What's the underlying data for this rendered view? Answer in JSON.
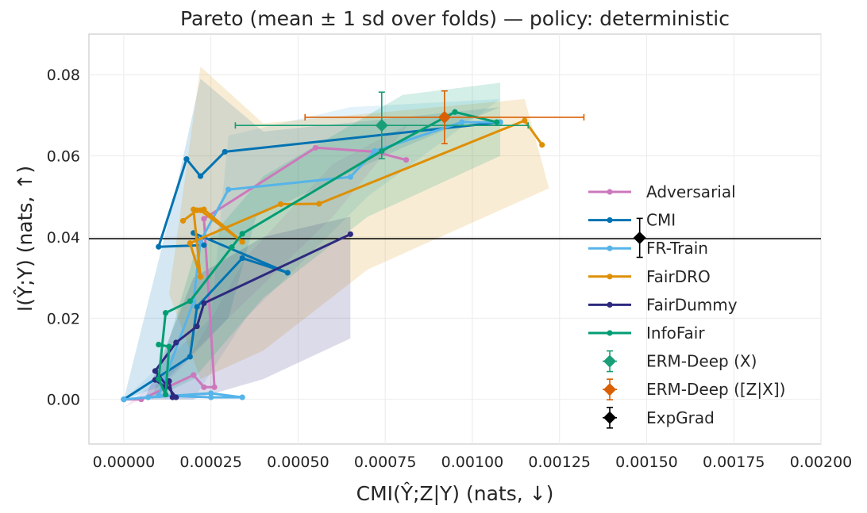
{
  "chart_data": {
    "type": "line",
    "title": "Pareto (mean ± 1 sd over folds) — policy: deterministic",
    "xlabel": "CMI(Ŷ;Z|Y) (nats, ↓)",
    "ylabel": "I(Ŷ;Y) (nats, ↑)",
    "xlim": [
      -0.0001,
      0.002
    ],
    "ylim": [
      -0.011,
      0.09
    ],
    "grid": true,
    "x_ticks": [
      0.0,
      0.00025,
      0.0005,
      0.00075,
      0.001,
      0.00125,
      0.0015,
      0.00175,
      0.002
    ],
    "x_tick_labels": [
      "0.00000",
      "0.00025",
      "0.00050",
      "0.00075",
      "0.00100",
      "0.00125",
      "0.00150",
      "0.00175",
      "0.00200"
    ],
    "y_ticks": [
      0.0,
      0.02,
      0.04,
      0.06,
      0.08
    ],
    "y_tick_labels": [
      "0.00",
      "0.02",
      "0.04",
      "0.06",
      "0.08"
    ],
    "reference_line": {
      "y": 0.0396,
      "color": "#000000"
    },
    "legend_position": "center-right",
    "series": [
      {
        "name": "Adversarial",
        "color": "#cc78bc",
        "points": [
          [
            0.0,
            0.0
          ],
          [
            5e-05,
            0.0
          ],
          [
            0.0002,
            0.006
          ],
          [
            0.00023,
            0.003
          ],
          [
            0.00026,
            0.003
          ],
          [
            0.00023,
            0.0445
          ],
          [
            0.00055,
            0.062
          ],
          [
            0.00072,
            0.061
          ],
          [
            0.00081,
            0.059
          ]
        ],
        "band": [
          [
            0.0,
            -0.002
          ],
          [
            0.0002,
            0.012
          ],
          [
            0.00035,
            0.035
          ],
          [
            0.0006,
            0.058
          ],
          [
            0.00082,
            0.068
          ],
          [
            0.0006,
            0.045
          ],
          [
            0.0003,
            0.02
          ],
          [
            0.0001,
            0.002
          ]
        ]
      },
      {
        "name": "CMI",
        "color": "#0173b2",
        "points": [
          [
            0.0,
            0.0
          ],
          [
            0.00019,
            0.0105
          ],
          [
            0.00021,
            0.0228
          ],
          [
            0.00034,
            0.0348
          ],
          [
            0.00047,
            0.0312
          ],
          [
            0.0002,
            0.041
          ],
          [
            0.00023,
            0.038
          ],
          [
            0.0001,
            0.0376
          ],
          [
            0.00018,
            0.0592
          ],
          [
            0.00022,
            0.055
          ],
          [
            0.00029,
            0.061
          ],
          [
            0.00108,
            0.0683
          ]
        ],
        "band": [
          [
            0.0,
            0.0
          ],
          [
            0.00014,
            0.048
          ],
          [
            0.00022,
            0.079
          ],
          [
            0.0004,
            0.066
          ],
          [
            0.00108,
            0.072
          ],
          [
            0.0008,
            0.062
          ],
          [
            0.00038,
            0.045
          ],
          [
            0.0003,
            0.02
          ],
          [
            0.0001,
            0.003
          ]
        ]
      },
      {
        "name": "FR-Train",
        "color": "#56b4e9",
        "points": [
          [
            0.0,
            0.0
          ],
          [
            7e-05,
            0.0005
          ],
          [
            0.00025,
            0.0015
          ],
          [
            0.00034,
            0.0005
          ],
          [
            0.00025,
            0.0005
          ],
          [
            0.0001,
            0.001
          ],
          [
            0.0002,
            0.024
          ],
          [
            0.00022,
            0.039
          ],
          [
            0.0003,
            0.0517
          ],
          [
            0.00065,
            0.0548
          ],
          [
            0.00072,
            0.0612
          ],
          [
            0.00097,
            0.0683
          ],
          [
            0.00108,
            0.0683
          ]
        ],
        "band": [
          [
            0.0,
            0.0
          ],
          [
            0.00025,
            0.02
          ],
          [
            0.0003,
            0.065
          ],
          [
            0.00065,
            0.072
          ],
          [
            0.00108,
            0.074
          ],
          [
            0.0007,
            0.05
          ],
          [
            0.00035,
            0.02
          ],
          [
            0.0002,
            0.0
          ]
        ]
      },
      {
        "name": "FairDRO",
        "color": "#de8f05",
        "points": [
          [
            0.00017,
            0.044
          ],
          [
            0.00021,
            0.0466
          ],
          [
            0.00023,
            0.0468
          ],
          [
            0.00034,
            0.0388
          ],
          [
            0.00022,
            0.0466
          ],
          [
            0.0002,
            0.0468
          ],
          [
            0.00022,
            0.0302
          ],
          [
            0.00019,
            0.0385
          ],
          [
            0.00045,
            0.0481
          ],
          [
            0.00056,
            0.0482
          ],
          [
            0.00115,
            0.0687
          ],
          [
            0.0012,
            0.0627
          ]
        ],
        "band": [
          [
            0.00013,
            0.026
          ],
          [
            0.00022,
            0.082
          ],
          [
            0.0004,
            0.068
          ],
          [
            0.00115,
            0.074
          ],
          [
            0.00122,
            0.052
          ],
          [
            0.0007,
            0.032
          ],
          [
            0.0004,
            0.012
          ],
          [
            0.00022,
            0.005
          ]
        ]
      },
      {
        "name": "FairDummy",
        "color": "#2d2a7f",
        "points": [
          [
            0.0001,
            0.0055
          ],
          [
            9e-05,
            0.0048
          ],
          [
            0.00012,
            0.003
          ],
          [
            0.00013,
            0.0045
          ],
          [
            0.00014,
            0.0005
          ],
          [
            0.00015,
            0.0005
          ],
          [
            9e-05,
            0.007
          ],
          [
            0.00015,
            0.014
          ],
          [
            0.00021,
            0.018
          ],
          [
            0.00023,
            0.0237
          ],
          [
            0.00065,
            0.0407
          ]
        ],
        "band": [
          [
            6e-05,
            0.0
          ],
          [
            0.0002,
            0.03
          ],
          [
            0.0004,
            0.04
          ],
          [
            0.00065,
            0.045
          ],
          [
            0.00065,
            0.015
          ],
          [
            0.0004,
            0.005
          ],
          [
            0.0002,
            0.0
          ]
        ]
      },
      {
        "name": "InfoFair",
        "color": "#029e73",
        "points": [
          [
            0.0001,
            0.0135
          ],
          [
            0.00013,
            0.013
          ],
          [
            0.00012,
            0.0012
          ],
          [
            0.0001,
            0.005
          ],
          [
            0.00012,
            0.0213
          ],
          [
            0.00019,
            0.0242
          ],
          [
            0.00031,
            0.0375
          ],
          [
            0.00034,
            0.0408
          ],
          [
            0.00074,
            0.0612
          ],
          [
            0.00095,
            0.0708
          ],
          [
            0.00107,
            0.0683
          ]
        ],
        "band": [
          [
            8e-05,
            0.0
          ],
          [
            0.0002,
            0.035
          ],
          [
            0.0004,
            0.055
          ],
          [
            0.0008,
            0.075
          ],
          [
            0.00108,
            0.078
          ],
          [
            0.00108,
            0.06
          ],
          [
            0.0007,
            0.045
          ],
          [
            0.0004,
            0.025
          ],
          [
            0.0002,
            0.005
          ]
        ]
      }
    ],
    "error_points": [
      {
        "name": "ERM-Deep (X)",
        "color": "#1a9e77",
        "marker": "diamond",
        "x": 0.00074,
        "y": 0.0675,
        "xerr": 0.00042,
        "yerr": 0.0082
      },
      {
        "name": "ERM-Deep ([Z|X])",
        "color": "#d95f02",
        "marker": "diamond",
        "x": 0.00092,
        "y": 0.0695,
        "xerr": 0.0004,
        "yerr": 0.0065
      },
      {
        "name": "ExpGrad",
        "color": "#000000",
        "marker": "diamond",
        "x": 0.00148,
        "y": 0.0398,
        "xerr": 0.0,
        "yerr": 0.0048
      }
    ]
  }
}
